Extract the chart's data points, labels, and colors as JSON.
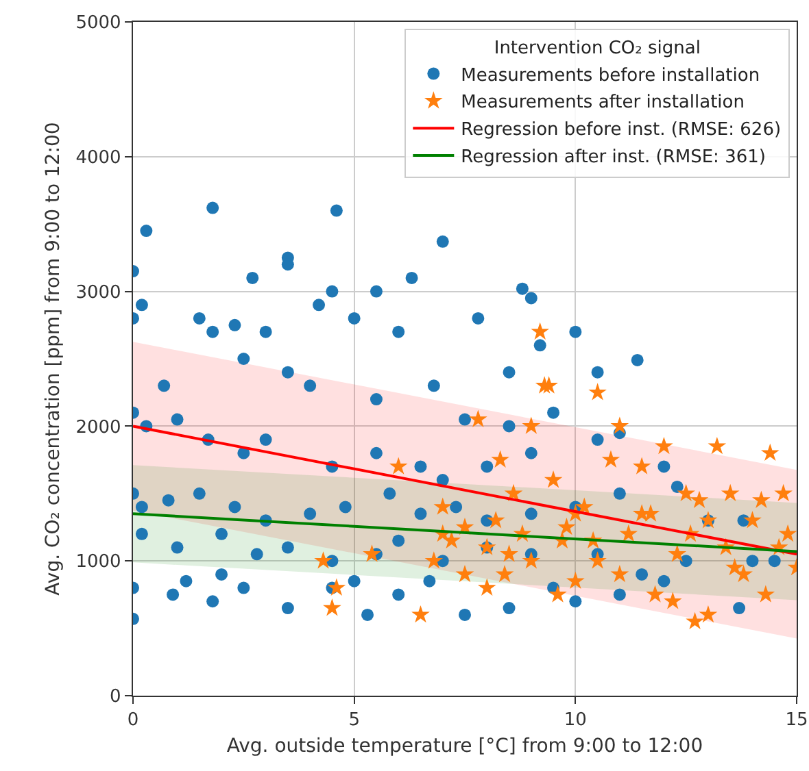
{
  "chart_data": {
    "type": "scatter",
    "xlabel": "Avg. outside temperature [°C] from 9:00 to 12:00",
    "ylabel": "Avg. CO₂ concentration [ppm] from 9:00 to 12:00",
    "legend_title": "Intervention CO₂ signal",
    "xlim": [
      0,
      15
    ],
    "xticks": [
      0,
      5,
      10,
      15
    ],
    "ylim": [
      0,
      5000
    ],
    "yticks": [
      0,
      1000,
      2000,
      3000,
      4000,
      5000
    ],
    "grid": true,
    "legend": "top right",
    "series": [
      {
        "name": "Measurements before installation",
        "marker": "circle",
        "color": "#1f77b4",
        "x": [
          1.8,
          4.6,
          0.3,
          0,
          2.7,
          3.5,
          3.5,
          7.0,
          6.3,
          8.8,
          11.4,
          0.2,
          1.5,
          0,
          4.2,
          4.5,
          5.5,
          5,
          6,
          7.8,
          9.0,
          10,
          10.5,
          9.2,
          8.5,
          3,
          2.3,
          1.8,
          2.5,
          0.7,
          3.5,
          4,
          5.5,
          6.8,
          7.5,
          8.5,
          9.5,
          10.5,
          11,
          12,
          0,
          0.3,
          1,
          1.7,
          2.5,
          3,
          4.5,
          5.5,
          6.5,
          7,
          8,
          9,
          0,
          0.2,
          0.8,
          1.5,
          2.3,
          3,
          4,
          4.8,
          5.8,
          6.5,
          7.3,
          8,
          9,
          10,
          11,
          12.3,
          13,
          0.2,
          1,
          2,
          2.8,
          3.5,
          4.5,
          5.5,
          6,
          7,
          8,
          9,
          10.5,
          11.5,
          12.5,
          13.8,
          14,
          14.5,
          0,
          0.9,
          1.8,
          2.5,
          3.5,
          4.5,
          5.3,
          6,
          7.5,
          8.5,
          10,
          11,
          13.7,
          0,
          1.2,
          2,
          5,
          6.7,
          9.5,
          12
        ],
        "values": [
          3620,
          3600,
          3450,
          3150,
          3100,
          3250,
          3200,
          3370,
          3100,
          3020,
          2490,
          2900,
          2800,
          2800,
          2900,
          3000,
          3000,
          2800,
          2700,
          2800,
          2950,
          2700,
          2400,
          2600,
          2400,
          2700,
          2750,
          2700,
          2500,
          2300,
          2400,
          2300,
          2200,
          2300,
          2050,
          2000,
          2100,
          1900,
          1950,
          1700,
          2100,
          2000,
          2050,
          1900,
          1800,
          1900,
          1700,
          1800,
          1700,
          1600,
          1700,
          1800,
          1500,
          1400,
          1450,
          1500,
          1400,
          1300,
          1350,
          1400,
          1500,
          1350,
          1400,
          1300,
          1350,
          1400,
          1500,
          1550,
          1300,
          1200,
          1100,
          1200,
          1050,
          1100,
          1000,
          1050,
          1150,
          1000,
          1100,
          1050,
          1050,
          900,
          1000,
          1300,
          1000,
          1000,
          800,
          750,
          700,
          800,
          650,
          800,
          600,
          750,
          600,
          650,
          700,
          750,
          650,
          570,
          850,
          900,
          850,
          850,
          800,
          850
        ]
      },
      {
        "name": "Measurements after installation",
        "marker": "star",
        "color": "#ff7f0e",
        "x": [
          4.3,
          4.5,
          4.6,
          5.4,
          6,
          7,
          7.5,
          7.8,
          8,
          8.2,
          8.4,
          8.6,
          8.8,
          9,
          9.2,
          9.3,
          9.5,
          9.7,
          10,
          10.2,
          10.5,
          10.8,
          11,
          11.2,
          11.5,
          11.8,
          12,
          12.3,
          12.5,
          12.7,
          13,
          13,
          13.2,
          13.4,
          13.5,
          13.8,
          14,
          14.2,
          14.4,
          14.6,
          14.8,
          15,
          9.4,
          9,
          10.5,
          11.5,
          7.5,
          8,
          6.8,
          7.2,
          8.5,
          9.8,
          10.4,
          11,
          12.2,
          12.8,
          9.6,
          8.3,
          7,
          6.5,
          10,
          11.7,
          12.6,
          13.6,
          14.3,
          14.7
        ],
        "values": [
          1000,
          650,
          800,
          1050,
          1700,
          1400,
          1250,
          2050,
          1100,
          1300,
          900,
          1500,
          1200,
          1000,
          2700,
          2300,
          1600,
          1150,
          850,
          1400,
          1000,
          1750,
          2000,
          1200,
          1350,
          750,
          1850,
          1050,
          1500,
          550,
          1300,
          600,
          1850,
          1100,
          1500,
          900,
          1300,
          1450,
          1800,
          1100,
          1200,
          950,
          2300,
          2000,
          2250,
          1700,
          900,
          800,
          1000,
          1150,
          1050,
          1250,
          1150,
          900,
          700,
          1450,
          750,
          1750,
          1200,
          600,
          1350,
          1350,
          1200,
          950,
          750,
          1500
        ]
      },
      {
        "name": "Regression before inst. (RMSE: 626)",
        "type": "line",
        "marker": "none",
        "color": "#ff0000",
        "x": [
          0,
          15
        ],
        "values": [
          2000,
          1050
        ],
        "lower": [
          1374,
          424
        ],
        "upper": [
          2626,
          1676
        ]
      },
      {
        "name": "Regression after inst. (RMSE: 361)",
        "type": "line",
        "marker": "none",
        "color": "#008000",
        "x": [
          0,
          15
        ],
        "values": [
          1350,
          1070
        ],
        "lower": [
          989,
          709
        ],
        "upper": [
          1711,
          1431
        ]
      }
    ]
  }
}
